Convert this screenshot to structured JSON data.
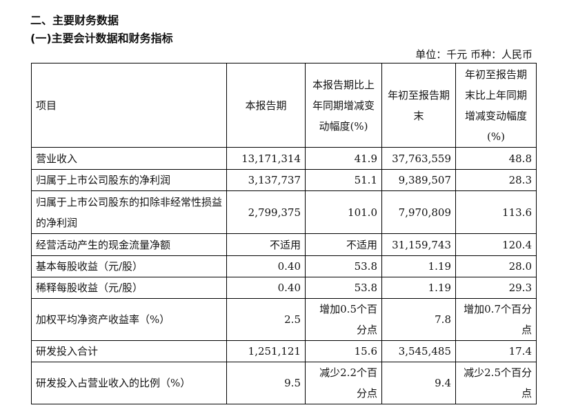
{
  "section_title": "二、主要财务数据",
  "subsection_title": "(一)主要会计数据和财务指标",
  "unit_line": "单位：千元  币种：人民币",
  "headers": [
    "项目",
    "本报告期",
    "本报告期比上年同期增减变动幅度(%)",
    "年初至报告期末",
    "年初至报告期末比上年同期增减变动幅度(%)"
  ],
  "rows": [
    {
      "item": "营业收入",
      "current": "13,171,314",
      "current_change": "41.9",
      "ytd": "37,763,559",
      "ytd_change": "48.8"
    },
    {
      "item": "归属于上市公司股东的净利润",
      "current": "3,137,737",
      "current_change": "51.1",
      "ytd": "9,389,507",
      "ytd_change": "28.3"
    },
    {
      "item": "归属于上市公司股东的扣除非经常性损益的净利润",
      "current": "2,799,375",
      "current_change": "101.0",
      "ytd": "7,970,809",
      "ytd_change": "113.6"
    },
    {
      "item": "经营活动产生的现金流量净额",
      "current": "不适用",
      "current_change": "不适用",
      "ytd": "31,159,743",
      "ytd_change": "120.4"
    },
    {
      "item": "基本每股收益（元/股）",
      "current": "0.40",
      "current_change": "53.8",
      "ytd": "1.19",
      "ytd_change": "28.0"
    },
    {
      "item": "稀释每股收益（元/股）",
      "current": "0.40",
      "current_change": "53.8",
      "ytd": "1.19",
      "ytd_change": "29.3"
    },
    {
      "item": "加权平均净资产收益率（%）",
      "current": "2.5",
      "current_change": "增加0.5个百分点",
      "ytd": "7.8",
      "ytd_change": "增加0.7个百分点"
    },
    {
      "item": "研发投入合计",
      "current": "1,251,121",
      "current_change": "15.6",
      "ytd": "3,545,485",
      "ytd_change": "17.4"
    },
    {
      "item": "研发投入占营业收入的比例（%）",
      "current": "9.5",
      "current_change": "减少2.2个百分点",
      "ytd": "9.4",
      "ytd_change": "减少2.5个百分点"
    }
  ]
}
